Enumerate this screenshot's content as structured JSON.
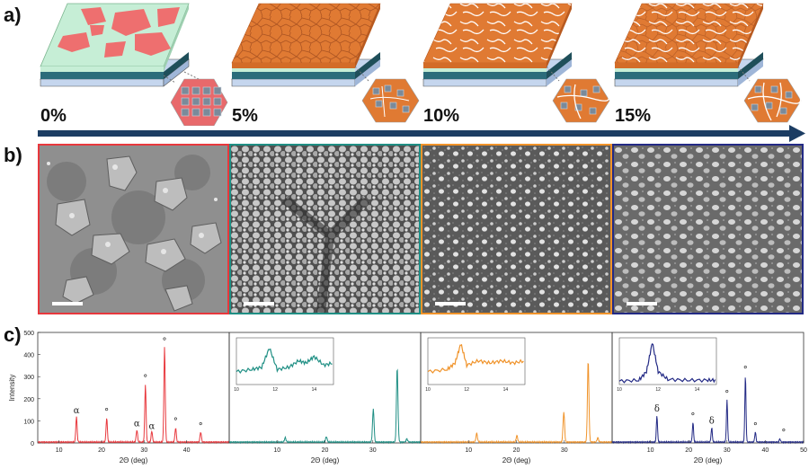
{
  "panels": {
    "a": "a)",
    "b": "b)",
    "c": "c)"
  },
  "percentages": [
    "0%",
    "5%",
    "10%",
    "15%"
  ],
  "colors": {
    "red": "#e8383d",
    "teal": "#1f8f84",
    "orange": "#f0932a",
    "navy": "#232a85",
    "arrow": "#1c3d63",
    "film_orange": "#e07a33",
    "film_green": "#c6eed6",
    "film_pink": "#ee6f6f"
  },
  "chart_data": {
    "type": "line",
    "ylabel": "Intensity",
    "ylim": [
      0,
      500
    ],
    "yticks": [
      "0",
      "100",
      "200",
      "300",
      "400",
      "500"
    ],
    "xlabel": "2Θ (deg)",
    "subplots": [
      {
        "name": "",
        "color": "#e8383d",
        "xlim": [
          5,
          50
        ],
        "xticks": [
          "10",
          "20",
          "30",
          "40"
        ],
        "peaks": [
          [
            14.1,
            115
          ],
          [
            21.2,
            110
          ],
          [
            28.3,
            55
          ],
          [
            30.3,
            260
          ],
          [
            31.8,
            50
          ],
          [
            34.8,
            430
          ],
          [
            37.4,
            65
          ],
          [
            43.3,
            45
          ]
        ],
        "annotations": [
          {
            "x": 14.1,
            "y": 135,
            "text": "α"
          },
          {
            "x": 21.2,
            "y": 128,
            "text": "°"
          },
          {
            "x": 28.3,
            "y": 75,
            "text": "α"
          },
          {
            "x": 30.3,
            "y": 280,
            "text": "°"
          },
          {
            "x": 31.8,
            "y": 62,
            "text": "α"
          },
          {
            "x": 34.8,
            "y": 448,
            "text": "°"
          },
          {
            "x": 37.4,
            "y": 85,
            "text": "°"
          },
          {
            "x": 43.3,
            "y": 62,
            "text": "°"
          }
        ]
      },
      {
        "name": "",
        "color": "#1f8f84",
        "xlim": [
          0,
          40
        ],
        "xticks": [
          "10",
          "20",
          "30"
        ],
        "peaks": [
          [
            11.7,
            20
          ],
          [
            20.3,
            25
          ],
          [
            30.1,
            150
          ],
          [
            35.1,
            340
          ],
          [
            37.1,
            15
          ]
        ],
        "annotations": [],
        "inset": {
          "xlim": [
            10,
            15
          ],
          "xticks": [
            "10",
            "12",
            "14"
          ],
          "points": [
            [
              10.0,
              0.3
            ],
            [
              10.8,
              0.35
            ],
            [
              11.3,
              0.4
            ],
            [
              11.7,
              0.85
            ],
            [
              12.1,
              0.35
            ],
            [
              12.7,
              0.4
            ],
            [
              13.2,
              0.55
            ],
            [
              13.6,
              0.5
            ],
            [
              14.0,
              0.65
            ],
            [
              14.5,
              0.45
            ],
            [
              15.0,
              0.5
            ]
          ]
        }
      },
      {
        "name": "",
        "color": "#f0932a",
        "xlim": [
          0,
          40
        ],
        "xticks": [
          "10",
          "20",
          "30"
        ],
        "peaks": [
          [
            11.7,
            40
          ],
          [
            20.1,
            30
          ],
          [
            29.9,
            135
          ],
          [
            35.0,
            370
          ],
          [
            37.0,
            20
          ]
        ],
        "annotations": [],
        "inset": {
          "xlim": [
            10,
            15
          ],
          "xticks": [
            "10",
            "12",
            "14"
          ],
          "points": [
            [
              10.0,
              0.3
            ],
            [
              11.0,
              0.35
            ],
            [
              11.4,
              0.5
            ],
            [
              11.7,
              0.95
            ],
            [
              12.0,
              0.45
            ],
            [
              12.6,
              0.55
            ],
            [
              13.2,
              0.5
            ],
            [
              13.8,
              0.55
            ],
            [
              14.4,
              0.5
            ],
            [
              15.0,
              0.55
            ]
          ]
        }
      },
      {
        "name": "",
        "color": "#232a85",
        "xlim": [
          0,
          50
        ],
        "xticks": [
          "10",
          "20",
          "30",
          "40",
          "50"
        ],
        "peaks": [
          [
            11.7,
            120
          ],
          [
            21.1,
            90
          ],
          [
            26.0,
            65
          ],
          [
            30.0,
            190
          ],
          [
            34.8,
            300
          ],
          [
            37.4,
            45
          ],
          [
            43.8,
            15
          ]
        ],
        "annotations": [
          {
            "x": 11.7,
            "y": 142,
            "text": "δ"
          },
          {
            "x": 21.1,
            "y": 108,
            "text": "°"
          },
          {
            "x": 26.0,
            "y": 87,
            "text": "δ"
          },
          {
            "x": 30.0,
            "y": 210,
            "text": "°"
          },
          {
            "x": 34.8,
            "y": 320,
            "text": "°"
          },
          {
            "x": 37.4,
            "y": 62,
            "text": "°"
          },
          {
            "x": 44.8,
            "y": 35,
            "text": "°"
          }
        ],
        "inset": {
          "xlim": [
            10,
            15
          ],
          "xticks": [
            "10",
            "12",
            "14"
          ],
          "points": [
            [
              10.0,
              0.08
            ],
            [
              11.0,
              0.1
            ],
            [
              11.4,
              0.3
            ],
            [
              11.7,
              0.98
            ],
            [
              12.0,
              0.3
            ],
            [
              12.5,
              0.12
            ],
            [
              13.5,
              0.1
            ],
            [
              14.5,
              0.1
            ],
            [
              15.0,
              0.1
            ]
          ]
        }
      }
    ]
  }
}
